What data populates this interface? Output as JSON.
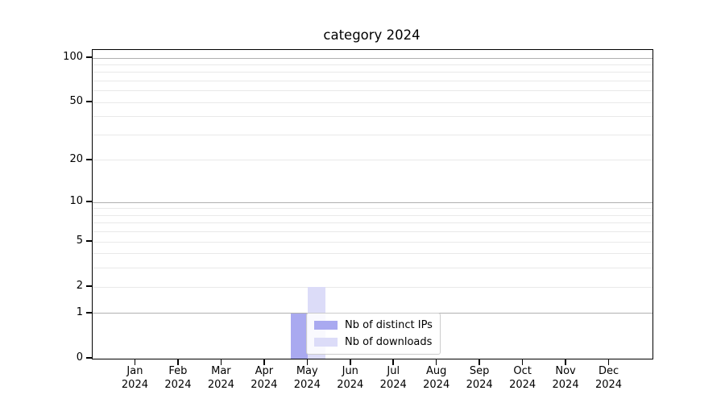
{
  "chart_data": {
    "type": "bar",
    "title": "category 2024",
    "x_tick_months": [
      "Jan",
      "Feb",
      "Mar",
      "Apr",
      "May",
      "Jun",
      "Jul",
      "Aug",
      "Sep",
      "Oct",
      "Nov",
      "Dec"
    ],
    "x_tick_year": "2024",
    "y_ticks": [
      0,
      1,
      2,
      5,
      10,
      20,
      50,
      100
    ],
    "y_scale": "log10(value+1), zero at baseline",
    "ylim": [
      0,
      112
    ],
    "grid_major_values": [
      1,
      10,
      100
    ],
    "grid_minor_values": [
      2,
      3,
      4,
      5,
      6,
      7,
      8,
      9,
      20,
      30,
      40,
      50,
      60,
      70,
      80,
      90
    ],
    "grid": "horizontal only",
    "legend_position": "inside, lower center",
    "series": [
      {
        "name": "Nb of distinct IPs",
        "color": "#a9a9f0",
        "values": [
          0,
          0,
          0,
          0,
          1,
          0,
          0,
          0,
          0,
          0,
          0,
          0
        ]
      },
      {
        "name": "Nb of downloads",
        "color": "#dcdcf8",
        "values": [
          0,
          0,
          0,
          0,
          2,
          0,
          0,
          0,
          0,
          0,
          0,
          0
        ]
      }
    ]
  },
  "colors": {
    "background": "#ffffff",
    "axis": "#000000",
    "grid_major": "#b0b0b0",
    "grid_minor": "#e9e9e9",
    "legend_border": "#cccccc",
    "text": "#000000"
  }
}
